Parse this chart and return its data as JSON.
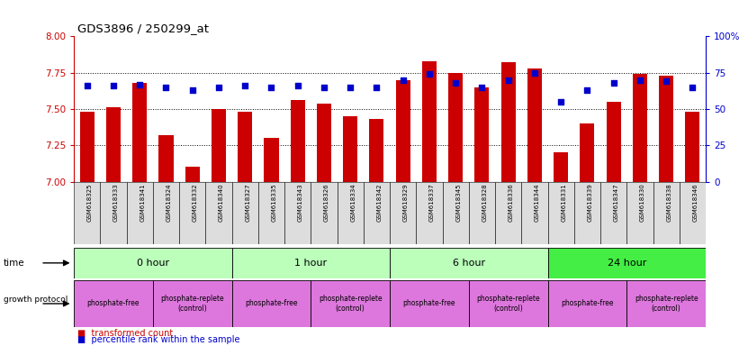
{
  "title": "GDS3896 / 250299_at",
  "samples": [
    "GSM618325",
    "GSM618333",
    "GSM618341",
    "GSM618324",
    "GSM618332",
    "GSM618340",
    "GSM618327",
    "GSM618335",
    "GSM618343",
    "GSM618326",
    "GSM618334",
    "GSM618342",
    "GSM618329",
    "GSM618337",
    "GSM618345",
    "GSM618328",
    "GSM618336",
    "GSM618344",
    "GSM618331",
    "GSM618339",
    "GSM618347",
    "GSM618330",
    "GSM618338",
    "GSM618346"
  ],
  "bar_values": [
    7.48,
    7.51,
    7.68,
    7.32,
    7.1,
    7.5,
    7.48,
    7.3,
    7.56,
    7.54,
    7.45,
    7.43,
    7.7,
    7.83,
    7.75,
    7.65,
    7.82,
    7.78,
    7.2,
    7.4,
    7.55,
    7.74,
    7.73,
    7.48
  ],
  "dot_values": [
    66,
    66,
    67,
    65,
    63,
    65,
    66,
    65,
    66,
    65,
    65,
    65,
    70,
    74,
    68,
    65,
    70,
    75,
    55,
    63,
    68,
    70,
    69,
    65
  ],
  "ylim_left": [
    7.0,
    8.0
  ],
  "ylim_right": [
    0,
    100
  ],
  "yticks_left": [
    7.0,
    7.25,
    7.5,
    7.75,
    8.0
  ],
  "yticks_right": [
    0,
    25,
    50,
    75,
    100
  ],
  "bar_color": "#cc0000",
  "dot_color": "#0000cc",
  "time_labels": [
    "0 hour",
    "1 hour",
    "6 hour",
    "24 hour"
  ],
  "time_colors": [
    "#bbffbb",
    "#bbffbb",
    "#bbffbb",
    "#44ee44"
  ],
  "time_boundaries": [
    0,
    6,
    12,
    18,
    24
  ],
  "proto_labels": [
    "phosphate-free",
    "phosphate-replete\n(control)",
    "phosphate-free",
    "phosphate-replete\n(control)",
    "phosphate-free",
    "phosphate-replete\n(control)",
    "phosphate-free",
    "phosphate-replete\n(control)"
  ],
  "proto_boundaries": [
    0,
    3,
    6,
    9,
    12,
    15,
    18,
    21,
    24
  ],
  "proto_color": "#dd77dd",
  "sample_box_color": "#dddddd",
  "bg_color": "#ffffff",
  "left_axis_color": "#cc0000",
  "right_axis_color": "#0000cc"
}
